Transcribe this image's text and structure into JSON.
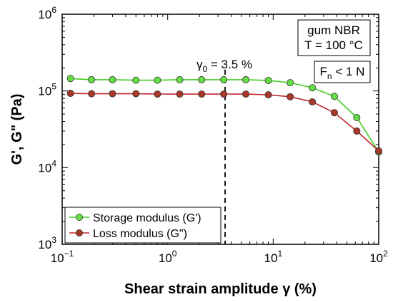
{
  "chart_data": {
    "type": "line",
    "x_scale": "log",
    "y_scale": "log",
    "xlim": [
      0.1,
      100
    ],
    "ylim": [
      1000,
      1000000
    ],
    "xlabel": "Shear strain amplitude γ (%)",
    "ylabel": "G', G\" (Pa)",
    "x_ticks": [
      {
        "value": 0.1,
        "base": "10",
        "exp": "−1"
      },
      {
        "value": 1,
        "base": "10",
        "exp": "0"
      },
      {
        "value": 10,
        "base": "10",
        "exp": "1"
      },
      {
        "value": 100,
        "base": "10",
        "exp": "2"
      }
    ],
    "y_ticks": [
      {
        "value": 1000,
        "base": "10",
        "exp": "3"
      },
      {
        "value": 10000,
        "base": "10",
        "exp": "4"
      },
      {
        "value": 100000,
        "base": "10",
        "exp": "5"
      },
      {
        "value": 1000000,
        "base": "10",
        "exp": "6"
      }
    ],
    "grid": false,
    "legend_position": "bottom-left",
    "x": [
      0.12,
      0.19,
      0.3,
      0.5,
      0.8,
      1.3,
      2.1,
      3.4,
      5.5,
      9.0,
      14.5,
      23.5,
      38,
      62,
      100
    ],
    "series": [
      {
        "name": "Storage modulus (G')",
        "color": "#44cc22",
        "marker_color": "#66dd44",
        "values": [
          145000,
          140000,
          140000,
          138000,
          138000,
          140000,
          140000,
          140000,
          140000,
          137000,
          128000,
          110000,
          85000,
          45000,
          16000
        ]
      },
      {
        "name": "Loss modulus (G\")",
        "color": "#c0282c",
        "marker_color": "#a83828",
        "values": [
          93000,
          92000,
          92000,
          92000,
          91000,
          91000,
          91000,
          91000,
          91000,
          89000,
          84000,
          72000,
          52000,
          30000,
          16500
        ]
      }
    ],
    "annotations": {
      "gamma0": {
        "symbol": "γ",
        "subscript": "0",
        "text": " = 3.5 %",
        "x": 3.5
      },
      "material": [
        "gum NBR",
        "T = 100 °C"
      ],
      "force": {
        "prefix": "F",
        "subscript": "n",
        "suffix": " < 1 N"
      }
    }
  }
}
